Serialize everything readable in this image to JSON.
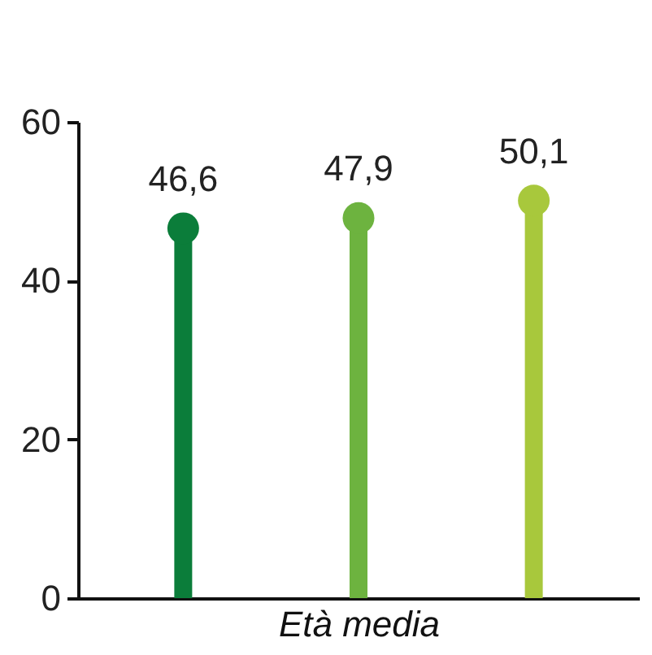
{
  "chart_data": {
    "type": "lollipop",
    "xlabel": "Età media",
    "categories": [
      null,
      null,
      null
    ],
    "values": [
      46.6,
      47.9,
      50.1
    ],
    "colors": [
      "#0b7d3a",
      "#6db33f",
      "#a8c83c"
    ],
    "value_labels": [
      "46,6",
      "47,9",
      "50,1"
    ],
    "ylim": [
      0,
      60
    ],
    "yticks": [
      0,
      20,
      40,
      60
    ],
    "marker": "circle",
    "grid": false
  }
}
